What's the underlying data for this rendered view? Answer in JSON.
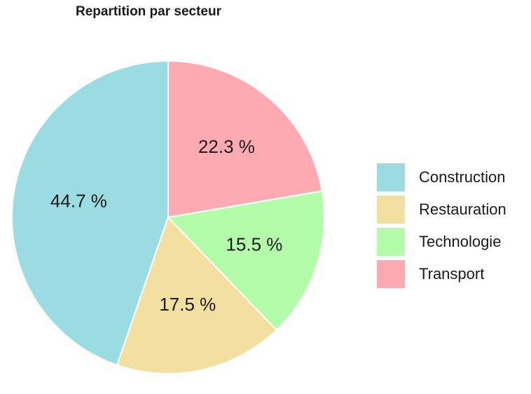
{
  "chart_data": {
    "type": "pie",
    "title": "Repartition par secteur",
    "categories": [
      "Construction",
      "Restauration",
      "Technologie",
      "Transport"
    ],
    "values": [
      44.7,
      17.5,
      15.5,
      22.3
    ],
    "slice_labels": [
      "44.7 %",
      "17.5 %",
      "15.5 %",
      "22.3 %"
    ],
    "colors": [
      "#9adce2",
      "#f3df9f",
      "#b3fca9",
      "#fdaab3"
    ],
    "direction": "counterclockwise",
    "start_angle": "12 o'clock",
    "legend_position": "right"
  }
}
